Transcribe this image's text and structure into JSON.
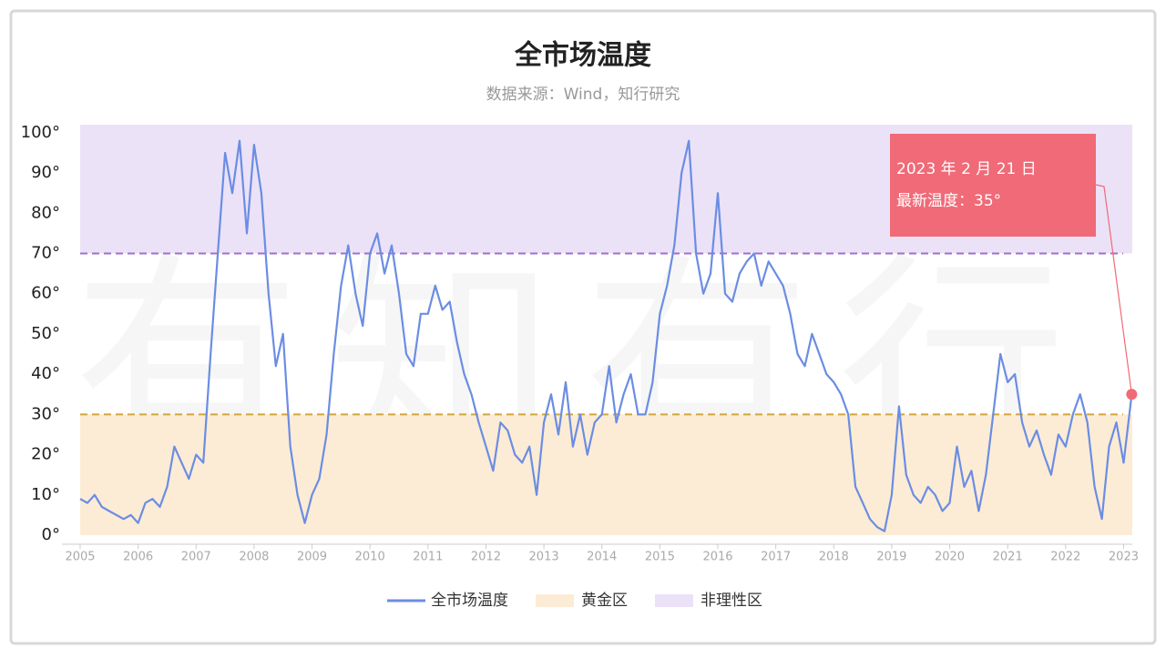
{
  "chart_data": {
    "type": "line",
    "title": "全市场温度",
    "subtitle": "数据来源：Wind，知行研究",
    "watermark": "有知有行",
    "x": [
      2005,
      2005.125,
      2005.25,
      2005.375,
      2005.5,
      2005.625,
      2005.75,
      2005.875,
      2006,
      2006.125,
      2006.25,
      2006.375,
      2006.5,
      2006.625,
      2006.75,
      2006.875,
      2007,
      2007.125,
      2007.25,
      2007.375,
      2007.5,
      2007.625,
      2007.75,
      2007.875,
      2008,
      2008.125,
      2008.25,
      2008.375,
      2008.5,
      2008.625,
      2008.75,
      2008.875,
      2009,
      2009.125,
      2009.25,
      2009.375,
      2009.5,
      2009.625,
      2009.75,
      2009.875,
      2010,
      2010.125,
      2010.25,
      2010.375,
      2010.5,
      2010.625,
      2010.75,
      2010.875,
      2011,
      2011.125,
      2011.25,
      2011.375,
      2011.5,
      2011.625,
      2011.75,
      2011.875,
      2012,
      2012.125,
      2012.25,
      2012.375,
      2012.5,
      2012.625,
      2012.75,
      2012.875,
      2013,
      2013.125,
      2013.25,
      2013.375,
      2013.5,
      2013.625,
      2013.75,
      2013.875,
      2014,
      2014.125,
      2014.25,
      2014.375,
      2014.5,
      2014.625,
      2014.75,
      2014.875,
      2015,
      2015.125,
      2015.25,
      2015.375,
      2015.5,
      2015.625,
      2015.75,
      2015.875,
      2016,
      2016.125,
      2016.25,
      2016.375,
      2016.5,
      2016.625,
      2016.75,
      2016.875,
      2017,
      2017.125,
      2017.25,
      2017.375,
      2017.5,
      2017.625,
      2017.75,
      2017.875,
      2018,
      2018.125,
      2018.25,
      2018.375,
      2018.5,
      2018.625,
      2018.75,
      2018.875,
      2019,
      2019.125,
      2019.25,
      2019.375,
      2019.5,
      2019.625,
      2019.75,
      2019.875,
      2020,
      2020.125,
      2020.25,
      2020.375,
      2020.5,
      2020.625,
      2020.75,
      2020.875,
      2021,
      2021.125,
      2021.25,
      2021.375,
      2021.5,
      2021.625,
      2021.75,
      2021.875,
      2022,
      2022.125,
      2022.25,
      2022.375,
      2022.5,
      2022.625,
      2022.75,
      2022.875,
      2023,
      2023.14
    ],
    "series": [
      {
        "name": "全市场温度",
        "color": "#6b8de3",
        "values": [
          9,
          8,
          10,
          7,
          6,
          5,
          4,
          5,
          3,
          8,
          9,
          7,
          12,
          22,
          18,
          14,
          20,
          18,
          45,
          70,
          95,
          85,
          98,
          75,
          97,
          85,
          60,
          42,
          50,
          22,
          10,
          3,
          10,
          14,
          25,
          45,
          62,
          72,
          60,
          52,
          70,
          75,
          65,
          72,
          60,
          45,
          42,
          55,
          55,
          62,
          56,
          58,
          48,
          40,
          35,
          28,
          22,
          16,
          28,
          26,
          20,
          18,
          22,
          10,
          28,
          35,
          25,
          38,
          22,
          30,
          20,
          28,
          30,
          42,
          28,
          35,
          40,
          30,
          30,
          38,
          55,
          62,
          72,
          90,
          98,
          70,
          60,
          65,
          85,
          60,
          58,
          65,
          68,
          70,
          62,
          68,
          65,
          62,
          55,
          45,
          42,
          50,
          45,
          40,
          38,
          35,
          30,
          12,
          8,
          4,
          2,
          1,
          10,
          32,
          15,
          10,
          8,
          12,
          10,
          6,
          8,
          22,
          12,
          16,
          6,
          15,
          30,
          45,
          38,
          40,
          28,
          22,
          26,
          20,
          15,
          25,
          22,
          30,
          35,
          28,
          12,
          4,
          22,
          28,
          18,
          35
        ]
      }
    ],
    "bands": [
      {
        "name": "黄金区",
        "color": "#fcecd6",
        "range": [
          0,
          30
        ]
      },
      {
        "name": "非理性区",
        "color": "#ebe2f8",
        "range": [
          70,
          102
        ]
      }
    ],
    "reference_lines": [
      {
        "value": 70,
        "color": "#a070cc"
      },
      {
        "value": 30,
        "color": "#d4a53c"
      }
    ],
    "annotation": {
      "x": 2023.14,
      "value": 35,
      "date_label": "2023 年 2 月 21 日",
      "label": "最新温度：35°",
      "color": "#f06a77"
    },
    "xlim": [
      2005,
      2023.15
    ],
    "xticks": [
      2005,
      2006,
      2007,
      2008,
      2009,
      2010,
      2011,
      2012,
      2013,
      2014,
      2015,
      2016,
      2017,
      2018,
      2019,
      2020,
      2021,
      2022,
      2023
    ],
    "ylim": [
      0,
      102
    ],
    "yticks": [
      {
        "value": 0,
        "label": "0°"
      },
      {
        "value": 10,
        "label": "10°"
      },
      {
        "value": 20,
        "label": "20°"
      },
      {
        "value": 30,
        "label": "30°"
      },
      {
        "value": 40,
        "label": "40°"
      },
      {
        "value": 50,
        "label": "50°"
      },
      {
        "value": 60,
        "label": "60°"
      },
      {
        "value": 70,
        "label": "70°"
      },
      {
        "value": 80,
        "label": "80°"
      },
      {
        "value": 90,
        "label": "90°"
      },
      {
        "value": 100,
        "label": "100°"
      }
    ]
  }
}
